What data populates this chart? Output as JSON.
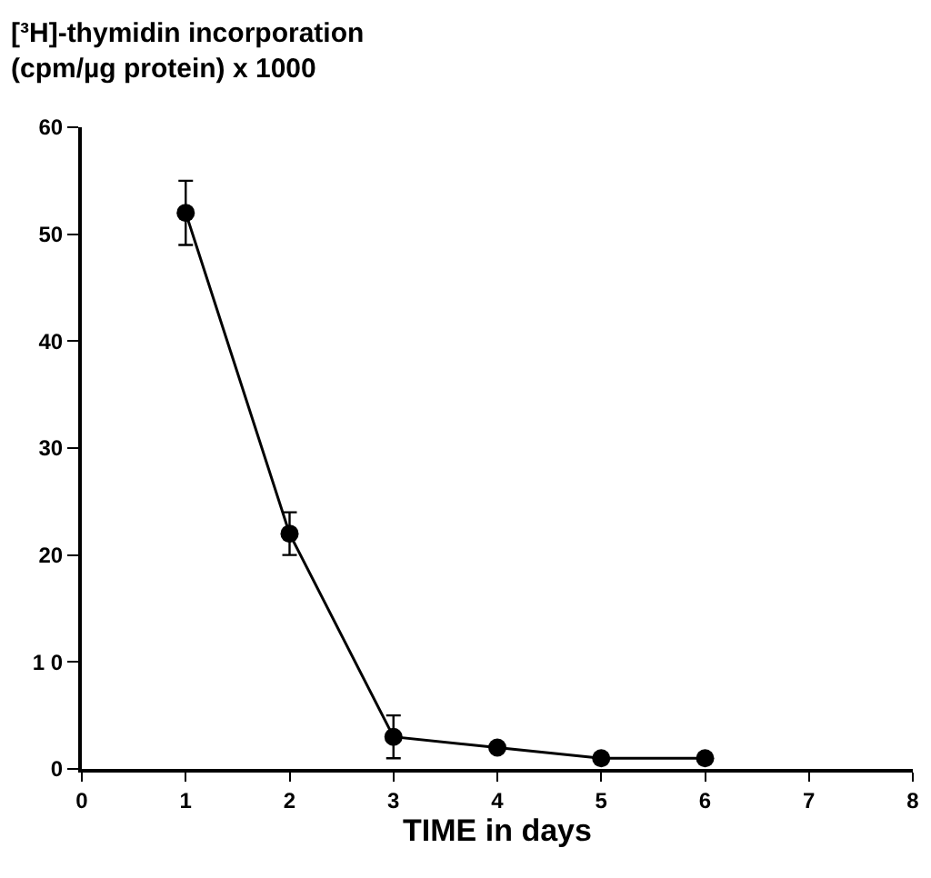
{
  "chart_data": {
    "type": "line",
    "ylabel": "[³H]-thymidin incorporation\n(cpm/µg protein) x 1000",
    "xlabel": "TIME in days",
    "x": [
      1,
      2,
      3,
      4,
      5,
      6
    ],
    "series": [
      {
        "color": "#000000",
        "values": [
          52,
          22,
          3,
          2,
          1,
          1
        ],
        "errors": [
          3,
          2,
          2,
          null,
          null,
          null
        ]
      }
    ],
    "xlim": [
      0,
      8
    ],
    "xticks": [
      0,
      1,
      2,
      3,
      4,
      5,
      6,
      7,
      8
    ],
    "ylim": [
      0,
      60
    ],
    "yticks": [
      0,
      {
        "value": 10,
        "label": "1 0"
      },
      20,
      30,
      40,
      50,
      60
    ],
    "marker": "circle",
    "line_style": "solid"
  }
}
